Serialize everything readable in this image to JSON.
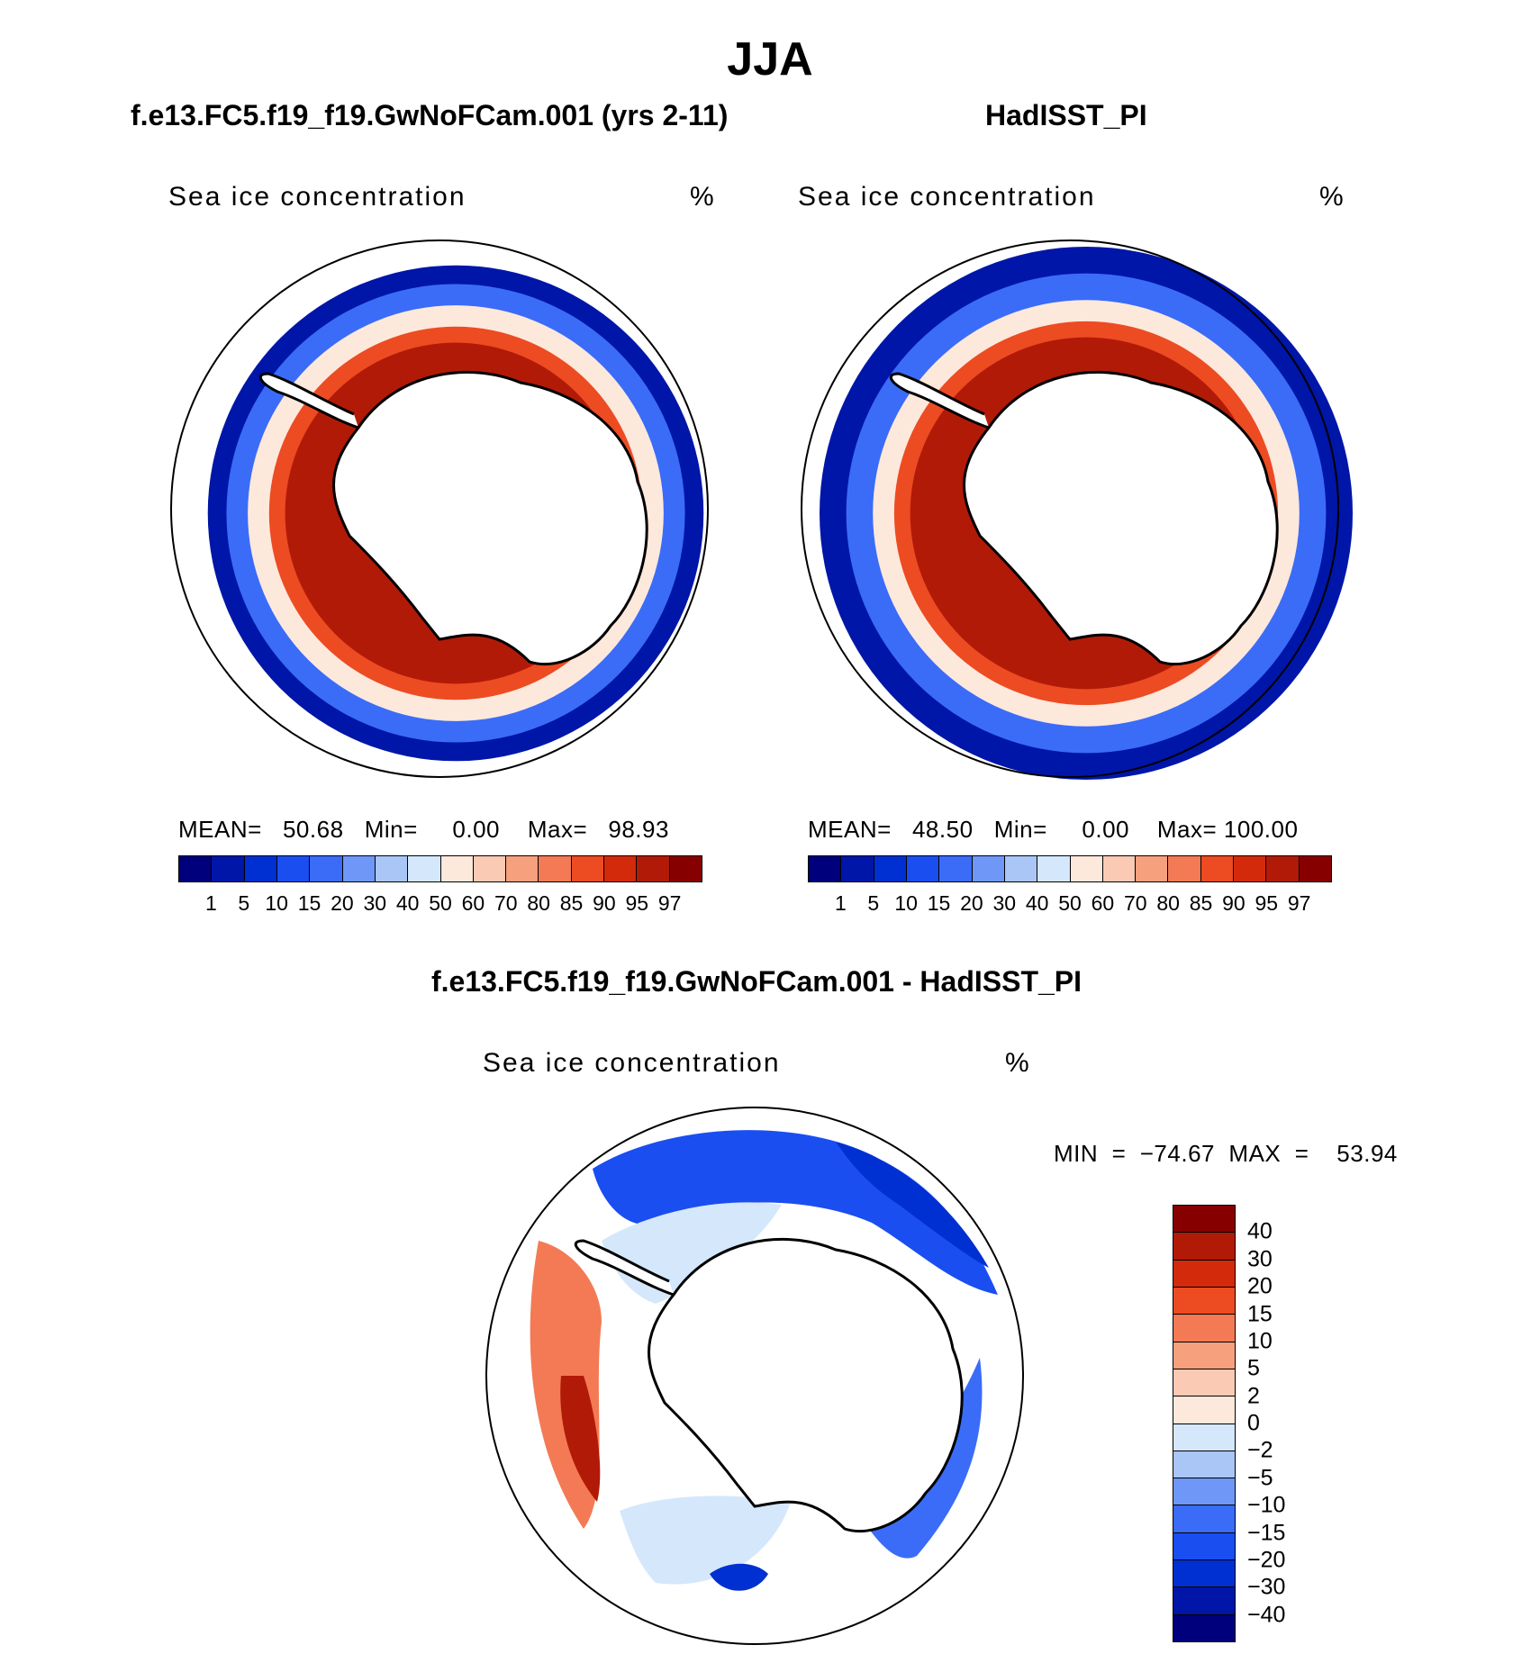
{
  "figure": {
    "season": "JJA",
    "panel_left_title": "f.e13.FC5.f19_f19.GwNoFCam.001 (yrs 2-11)",
    "panel_right_title": "HadISST_PI",
    "panel_diff_title": "f.e13.FC5.f19_f19.GwNoFCam.001 - HadISST_PI"
  },
  "maps": {
    "model": {
      "variable": "Sea ice concentration",
      "units": "%",
      "stats": "MEAN=   50.68   Min=     0.00    Max=   98.93"
    },
    "obs": {
      "variable": "Sea ice concentration",
      "units": "%",
      "stats": "MEAN=   48.50   Min=     0.00    Max= 100.00"
    },
    "diff": {
      "variable": "Sea ice concentration",
      "units": "%",
      "stats": "MIN  =  −74.67  MAX  =    53.94"
    }
  },
  "chart_data": [
    {
      "type": "heatmap",
      "title": "Sea ice concentration",
      "units": "%",
      "mean": 50.68,
      "min": 0.0,
      "max": 98.93,
      "ice_edge_rings": [
        {
          "level": 1,
          "radius_frac": 0.93
        },
        {
          "level": 15,
          "radius_frac": 0.86
        },
        {
          "level": 50,
          "radius_frac": 0.78
        },
        {
          "level": 85,
          "radius_frac": 0.7
        },
        {
          "level": 95,
          "radius_frac": 0.64
        }
      ]
    },
    {
      "type": "heatmap",
      "title": "Sea ice concentration",
      "units": "%",
      "mean": 48.5,
      "min": 0.0,
      "max": 100.0,
      "ice_edge_rings": [
        {
          "level": 1,
          "radius_frac": 1.0
        },
        {
          "level": 15,
          "radius_frac": 0.9
        },
        {
          "level": 50,
          "radius_frac": 0.8
        },
        {
          "level": 85,
          "radius_frac": 0.72
        },
        {
          "level": 95,
          "radius_frac": 0.66
        }
      ]
    },
    {
      "type": "heatmap",
      "title": "Sea ice concentration",
      "units": "%",
      "min": -74.67,
      "max": 53.94
    }
  ],
  "colorbar_abs": {
    "levels": [
      "1",
      "5",
      "10",
      "15",
      "20",
      "30",
      "40",
      "50",
      "60",
      "70",
      "80",
      "85",
      "90",
      "95",
      "97"
    ],
    "colors": [
      "#00007d",
      "#0016a8",
      "#0030d2",
      "#1a4ef0",
      "#3a6cf8",
      "#6f97f7",
      "#a9c6f6",
      "#d5e7fb",
      "#fde8dc",
      "#fbcab4",
      "#f6a07e",
      "#f37a55",
      "#ed4b22",
      "#d42a0c",
      "#b21a08",
      "#870000"
    ]
  },
  "colorbar_diff": {
    "levels": [
      "40",
      "30",
      "20",
      "15",
      "10",
      "5",
      "2",
      "0",
      "−2",
      "−5",
      "−10",
      "−15",
      "−20",
      "−30",
      "−40"
    ],
    "colors": [
      "#870000",
      "#b21a08",
      "#d42a0c",
      "#ed4b22",
      "#f37a55",
      "#f6a07e",
      "#fbcab4",
      "#fde8dc",
      "#d5e7fb",
      "#a9c6f6",
      "#6f97f7",
      "#3a6cf8",
      "#1a4ef0",
      "#0030d2",
      "#0016a8",
      "#00007d"
    ]
  }
}
